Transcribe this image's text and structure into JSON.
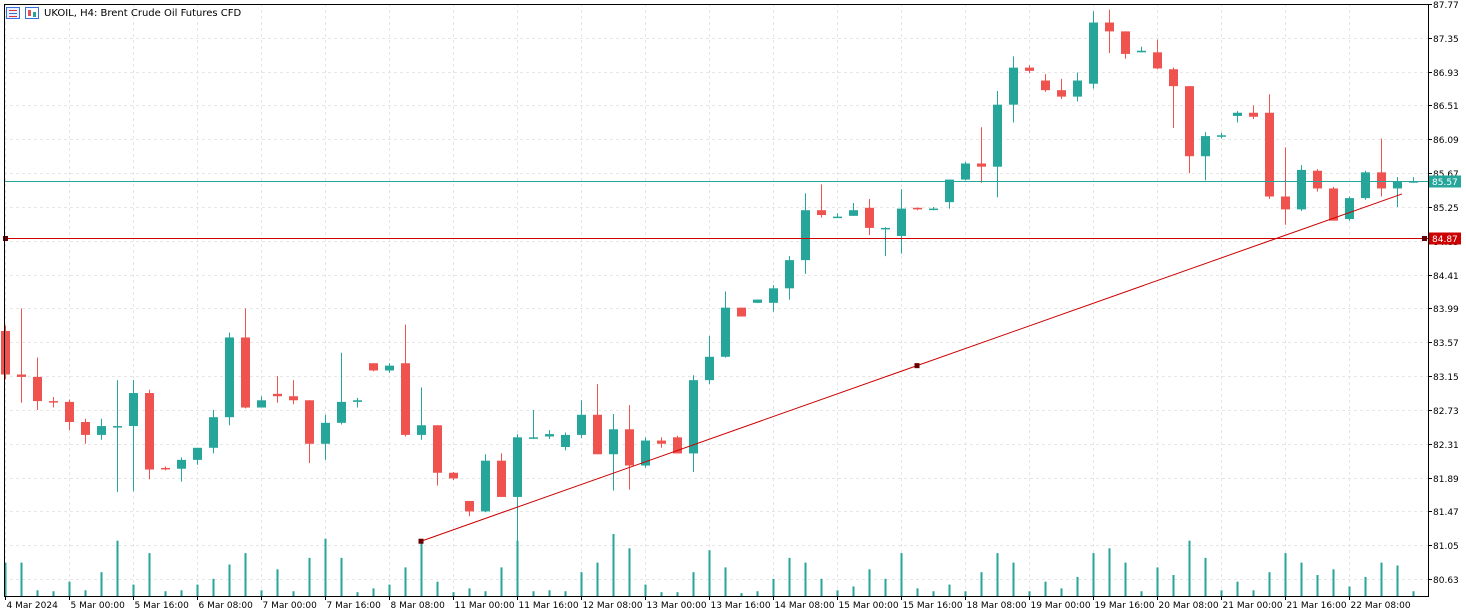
{
  "header": {
    "title": "UKOIL, H4:  Brent Crude Oil Futures CFD",
    "icons": [
      "chart-list-icon",
      "candles-icon"
    ]
  },
  "colors": {
    "up": "#26a69a",
    "down": "#ef5350",
    "bid_line": "#26a69a",
    "hline": "#cc0000",
    "trendline": "#cc0000",
    "volume": "#26a69a",
    "grid": "#e6e6e6"
  },
  "chart_data": {
    "type": "candlestick",
    "symbol": "UKOIL",
    "timeframe": "H4",
    "title": "UKOIL, H4:  Brent Crude Oil Futures CFD",
    "ylim": [
      80.42,
      87.77
    ],
    "yticks": [
      "87.77",
      "87.35",
      "86.93",
      "86.51",
      "86.09",
      "85.67",
      "85.25",
      "84.83",
      "84.41",
      "83.99",
      "83.57",
      "83.15",
      "82.73",
      "82.31",
      "81.89",
      "81.47",
      "81.05",
      "80.63"
    ],
    "xticks": [
      {
        "i": 0,
        "label": "4 Mar 2024"
      },
      {
        "i": 4,
        "label": "5 Mar 00:00"
      },
      {
        "i": 8,
        "label": "5 Mar 16:00"
      },
      {
        "i": 12,
        "label": "6 Mar 08:00"
      },
      {
        "i": 16,
        "label": "7 Mar 00:00"
      },
      {
        "i": 20,
        "label": "7 Mar 16:00"
      },
      {
        "i": 24,
        "label": "8 Mar 08:00"
      },
      {
        "i": 28,
        "label": "11 Mar 00:00"
      },
      {
        "i": 32,
        "label": "11 Mar 16:00"
      },
      {
        "i": 36,
        "label": "12 Mar 08:00"
      },
      {
        "i": 40,
        "label": "13 Mar 00:00"
      },
      {
        "i": 44,
        "label": "13 Mar 16:00"
      },
      {
        "i": 48,
        "label": "14 Mar 08:00"
      },
      {
        "i": 52,
        "label": "15 Mar 00:00"
      },
      {
        "i": 56,
        "label": "15 Mar 16:00"
      },
      {
        "i": 60,
        "label": "18 Mar 08:00"
      },
      {
        "i": 64,
        "label": "19 Mar 00:00"
      },
      {
        "i": 68,
        "label": "19 Mar 16:00"
      },
      {
        "i": 72,
        "label": "20 Mar 08:00"
      },
      {
        "i": 76,
        "label": "21 Mar 00:00"
      },
      {
        "i": 80,
        "label": "21 Mar 16:00"
      },
      {
        "i": 84,
        "label": "22 Mar 08:00"
      }
    ],
    "candles": [
      {
        "o": 83.71,
        "h": 83.78,
        "l": 83.11,
        "c": 83.17,
        "v": 35
      },
      {
        "o": 83.17,
        "h": 83.99,
        "l": 82.82,
        "c": 83.14,
        "v": 35
      },
      {
        "o": 83.14,
        "h": 83.38,
        "l": 82.73,
        "c": 82.84,
        "v": 6
      },
      {
        "o": 82.84,
        "h": 82.89,
        "l": 82.76,
        "c": 82.83,
        "v": 5
      },
      {
        "o": 82.83,
        "h": 82.86,
        "l": 82.48,
        "c": 82.58,
        "v": 15
      },
      {
        "o": 82.58,
        "h": 82.62,
        "l": 82.31,
        "c": 82.42,
        "v": 6
      },
      {
        "o": 82.42,
        "h": 82.62,
        "l": 82.36,
        "c": 82.53,
        "v": 25
      },
      {
        "o": 82.53,
        "h": 83.1,
        "l": 81.71,
        "c": 82.53,
        "v": 58
      },
      {
        "o": 82.53,
        "h": 83.1,
        "l": 81.72,
        "c": 82.94,
        "v": 12
      },
      {
        "o": 82.94,
        "h": 82.98,
        "l": 81.87,
        "c": 81.99,
        "v": 45
      },
      {
        "o": 82.01,
        "h": 82.03,
        "l": 81.98,
        "c": 82.0,
        "v": 5
      },
      {
        "o": 82.0,
        "h": 82.14,
        "l": 81.84,
        "c": 82.11,
        "v": 6
      },
      {
        "o": 82.11,
        "h": 82.26,
        "l": 82.05,
        "c": 82.26,
        "v": 12
      },
      {
        "o": 82.26,
        "h": 82.73,
        "l": 82.19,
        "c": 82.64,
        "v": 18
      },
      {
        "o": 82.64,
        "h": 83.69,
        "l": 82.54,
        "c": 83.63,
        "v": 33
      },
      {
        "o": 83.63,
        "h": 83.99,
        "l": 82.75,
        "c": 82.76,
        "v": 45
      },
      {
        "o": 82.76,
        "h": 82.9,
        "l": 82.76,
        "c": 82.85,
        "v": 6
      },
      {
        "o": 82.93,
        "h": 83.15,
        "l": 82.82,
        "c": 82.9,
        "v": 28
      },
      {
        "o": 82.9,
        "h": 83.1,
        "l": 82.8,
        "c": 82.85,
        "v": 5
      },
      {
        "o": 82.85,
        "h": 82.85,
        "l": 82.07,
        "c": 82.31,
        "v": 40
      },
      {
        "o": 82.31,
        "h": 82.67,
        "l": 82.11,
        "c": 82.57,
        "v": 60
      },
      {
        "o": 82.57,
        "h": 83.44,
        "l": 82.55,
        "c": 82.83,
        "v": 40
      },
      {
        "o": 82.83,
        "h": 82.88,
        "l": 82.76,
        "c": 82.85,
        "v": 4
      },
      {
        "o": 83.31,
        "h": 83.31,
        "l": 83.21,
        "c": 83.22,
        "v": 8
      },
      {
        "o": 83.22,
        "h": 83.31,
        "l": 83.19,
        "c": 83.28,
        "v": 12
      },
      {
        "o": 83.31,
        "h": 83.79,
        "l": 82.4,
        "c": 82.42,
        "v": 30
      },
      {
        "o": 82.42,
        "h": 83.01,
        "l": 82.36,
        "c": 82.54,
        "v": 58
      },
      {
        "o": 82.54,
        "h": 82.54,
        "l": 81.79,
        "c": 81.95,
        "v": 15
      },
      {
        "o": 81.95,
        "h": 81.96,
        "l": 81.86,
        "c": 81.88,
        "v": 4
      },
      {
        "o": 81.6,
        "h": 81.6,
        "l": 81.41,
        "c": 81.47,
        "v": 8
      },
      {
        "o": 81.47,
        "h": 82.18,
        "l": 81.46,
        "c": 82.1,
        "v": 5
      },
      {
        "o": 82.1,
        "h": 82.19,
        "l": 81.65,
        "c": 81.65,
        "v": 30
      },
      {
        "o": 81.65,
        "h": 82.43,
        "l": 81.1,
        "c": 82.39,
        "v": 58
      },
      {
        "o": 82.39,
        "h": 82.73,
        "l": 82.37,
        "c": 82.39,
        "v": 5
      },
      {
        "o": 82.4,
        "h": 82.48,
        "l": 82.37,
        "c": 82.43,
        "v": 6
      },
      {
        "o": 82.27,
        "h": 82.45,
        "l": 82.23,
        "c": 82.42,
        "v": 5
      },
      {
        "o": 82.42,
        "h": 82.85,
        "l": 82.38,
        "c": 82.67,
        "v": 25
      },
      {
        "o": 82.67,
        "h": 83.05,
        "l": 82.18,
        "c": 82.18,
        "v": 35
      },
      {
        "o": 82.18,
        "h": 82.68,
        "l": 81.73,
        "c": 82.49,
        "v": 65
      },
      {
        "o": 82.49,
        "h": 82.79,
        "l": 81.74,
        "c": 82.04,
        "v": 50
      },
      {
        "o": 82.04,
        "h": 82.39,
        "l": 82.01,
        "c": 82.35,
        "v": 12
      },
      {
        "o": 82.35,
        "h": 82.39,
        "l": 82.26,
        "c": 82.31,
        "v": 4
      },
      {
        "o": 82.39,
        "h": 82.41,
        "l": 82.19,
        "c": 82.19,
        "v": 4
      },
      {
        "o": 82.19,
        "h": 83.16,
        "l": 81.96,
        "c": 83.1,
        "v": 25
      },
      {
        "o": 83.1,
        "h": 83.65,
        "l": 83.05,
        "c": 83.39,
        "v": 48
      },
      {
        "o": 83.39,
        "h": 84.2,
        "l": 83.38,
        "c": 84.0,
        "v": 30
      },
      {
        "o": 84.0,
        "h": 84.0,
        "l": 83.89,
        "c": 83.89,
        "v": 3
      },
      {
        "o": 84.06,
        "h": 84.1,
        "l": 84.06,
        "c": 84.1,
        "v": 5
      },
      {
        "o": 84.06,
        "h": 84.28,
        "l": 83.95,
        "c": 84.24,
        "v": 18
      },
      {
        "o": 84.24,
        "h": 84.64,
        "l": 84.1,
        "c": 84.59,
        "v": 40
      },
      {
        "o": 84.59,
        "h": 85.42,
        "l": 84.42,
        "c": 85.21,
        "v": 35
      },
      {
        "o": 85.21,
        "h": 85.53,
        "l": 85.12,
        "c": 85.15,
        "v": 18
      },
      {
        "o": 85.12,
        "h": 85.17,
        "l": 85.12,
        "c": 85.13,
        "v": 6
      },
      {
        "o": 85.14,
        "h": 85.3,
        "l": 85.14,
        "c": 85.21,
        "v": 10
      },
      {
        "o": 85.24,
        "h": 85.35,
        "l": 84.9,
        "c": 84.99,
        "v": 28
      },
      {
        "o": 84.99,
        "h": 85.0,
        "l": 84.64,
        "c": 84.99,
        "v": 18
      },
      {
        "o": 84.89,
        "h": 85.47,
        "l": 84.67,
        "c": 85.23,
        "v": 45
      },
      {
        "o": 85.24,
        "h": 85.24,
        "l": 85.21,
        "c": 85.22,
        "v": 8
      },
      {
        "o": 85.23,
        "h": 85.25,
        "l": 85.21,
        "c": 85.23,
        "v": 5
      },
      {
        "o": 85.31,
        "h": 85.59,
        "l": 85.23,
        "c": 85.59,
        "v": 12
      },
      {
        "o": 85.59,
        "h": 85.81,
        "l": 85.58,
        "c": 85.79,
        "v": 5
      },
      {
        "o": 85.79,
        "h": 86.24,
        "l": 85.55,
        "c": 85.75,
        "v": 25
      },
      {
        "o": 85.75,
        "h": 86.69,
        "l": 85.37,
        "c": 86.52,
        "v": 45
      },
      {
        "o": 86.52,
        "h": 87.12,
        "l": 86.3,
        "c": 86.98,
        "v": 35
      },
      {
        "o": 86.98,
        "h": 87.01,
        "l": 86.91,
        "c": 86.94,
        "v": 5
      },
      {
        "o": 86.82,
        "h": 86.9,
        "l": 86.68,
        "c": 86.7,
        "v": 15
      },
      {
        "o": 86.7,
        "h": 86.84,
        "l": 86.59,
        "c": 86.62,
        "v": 8
      },
      {
        "o": 86.62,
        "h": 86.92,
        "l": 86.56,
        "c": 86.82,
        "v": 20
      },
      {
        "o": 86.78,
        "h": 87.68,
        "l": 86.72,
        "c": 87.54,
        "v": 45
      },
      {
        "o": 87.54,
        "h": 87.7,
        "l": 87.16,
        "c": 87.43,
        "v": 50
      },
      {
        "o": 87.43,
        "h": 87.43,
        "l": 87.09,
        "c": 87.15,
        "v": 35
      },
      {
        "o": 87.17,
        "h": 87.24,
        "l": 87.17,
        "c": 87.19,
        "v": 5
      },
      {
        "o": 87.17,
        "h": 87.33,
        "l": 86.96,
        "c": 86.97,
        "v": 30
      },
      {
        "o": 86.96,
        "h": 86.98,
        "l": 86.23,
        "c": 86.75,
        "v": 22
      },
      {
        "o": 86.75,
        "h": 86.75,
        "l": 85.67,
        "c": 85.88,
        "v": 58
      },
      {
        "o": 85.88,
        "h": 86.18,
        "l": 85.58,
        "c": 86.13,
        "v": 40
      },
      {
        "o": 86.13,
        "h": 86.17,
        "l": 86.1,
        "c": 86.14,
        "v": 6
      },
      {
        "o": 86.38,
        "h": 86.44,
        "l": 86.3,
        "c": 86.42,
        "v": 15
      },
      {
        "o": 86.42,
        "h": 86.51,
        "l": 86.34,
        "c": 86.37,
        "v": 6
      },
      {
        "o": 86.42,
        "h": 86.65,
        "l": 85.35,
        "c": 85.38,
        "v": 25
      },
      {
        "o": 85.38,
        "h": 85.99,
        "l": 85.03,
        "c": 85.22,
        "v": 45
      },
      {
        "o": 85.22,
        "h": 85.77,
        "l": 85.2,
        "c": 85.71,
        "v": 35
      },
      {
        "o": 85.7,
        "h": 85.72,
        "l": 85.44,
        "c": 85.48,
        "v": 22
      },
      {
        "o": 85.48,
        "h": 85.5,
        "l": 85.12,
        "c": 85.08,
        "v": 28
      },
      {
        "o": 85.1,
        "h": 85.38,
        "l": 85.08,
        "c": 85.36,
        "v": 10
      },
      {
        "o": 85.36,
        "h": 85.7,
        "l": 85.34,
        "c": 85.68,
        "v": 20
      },
      {
        "o": 85.68,
        "h": 86.1,
        "l": 85.38,
        "c": 85.48,
        "v": 35
      },
      {
        "o": 85.48,
        "h": 85.62,
        "l": 85.25,
        "c": 85.57,
        "v": 32
      },
      {
        "o": 85.57,
        "h": 85.62,
        "l": 85.55,
        "c": 85.57,
        "v": 5
      }
    ],
    "lines": {
      "bid": {
        "value": 85.57,
        "label": "85.57"
      },
      "hline": {
        "value": 84.87,
        "label": "84.87"
      },
      "trend": {
        "start": {
          "i": 26,
          "price": 81.1
        },
        "mid": {
          "i": 57,
          "price": 83.28
        }
      }
    }
  }
}
